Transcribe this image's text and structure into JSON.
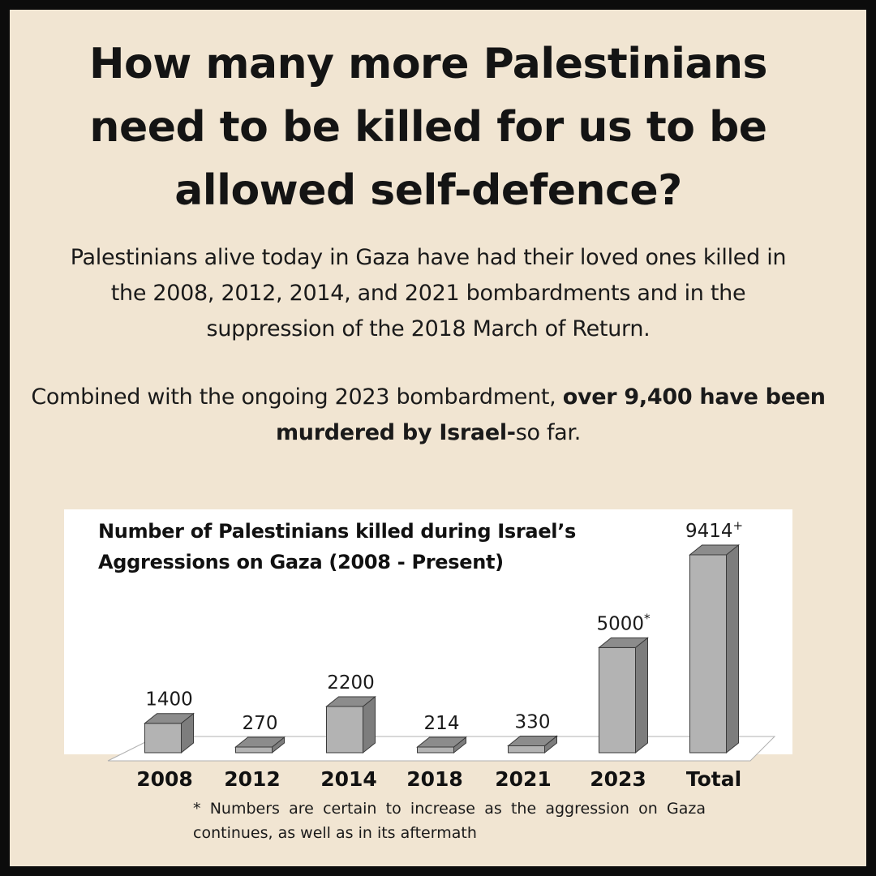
{
  "headline": "How many more Palestinians need to be killed for us to be allowed self-defence?",
  "paragraph_1": "Palestinians alive today in Gaza have had their loved ones killed in the 2008, 2012, 2014, and 2021 bombardments and in the suppression of the 2018 March of Return.",
  "paragraph_2": {
    "lead": "Combined with the ongoing 2023 bombardment, ",
    "bold": "over 9,400 have been murdered by Israel-",
    "tail": "so far."
  },
  "chart_data": {
    "type": "bar",
    "title": "Number of Palestinians killed during Israel’s Aggressions on Gaza (2008 - Present)",
    "categories": [
      "2008",
      "2012",
      "2014",
      "2018",
      "2021",
      "2023",
      "Total"
    ],
    "values": [
      1400,
      270,
      2200,
      214,
      330,
      5000,
      9414
    ],
    "value_labels": [
      "1400",
      "270",
      "2200",
      "214",
      "330",
      "5000",
      "9414"
    ],
    "label_marks": [
      "",
      "",
      "",
      "",
      "",
      "*",
      "+"
    ],
    "bar_color": "#b3b3b3",
    "bar_side_color": "#7d7d7d",
    "bar_top_color": "#8c8c8c",
    "style": "3d"
  },
  "footnote": "* Numbers are certain to increase as the aggression on Gaza continues, as well as in its aftermath",
  "colors": {
    "background": "#f1e5d2",
    "border": "#0c0c0c",
    "text": "#141414",
    "chart_background": "#ffffff"
  }
}
